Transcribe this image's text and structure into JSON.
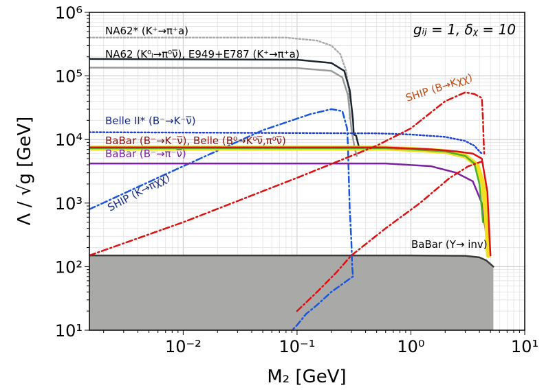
{
  "chart_data": {
    "type": "line",
    "title": "",
    "xlabel": "M₂  [GeV]",
    "ylabel": "Λ  / √g [GeV]",
    "xscale": "log",
    "yscale": "log",
    "xlim": [
      0.0015,
      10
    ],
    "ylim": [
      10,
      1000000
    ],
    "grid": true,
    "x_ticks": [
      {
        "value": 0.01,
        "label": "10⁻²"
      },
      {
        "value": 0.1,
        "label": "10⁻¹"
      },
      {
        "value": 1,
        "label": "10⁰"
      },
      {
        "value": 10,
        "label": "10¹"
      }
    ],
    "y_ticks": [
      {
        "value": 10,
        "label": "10¹"
      },
      {
        "value": 100,
        "label": "10²"
      },
      {
        "value": 1000,
        "label": "10³"
      },
      {
        "value": 10000,
        "label": "10⁴"
      },
      {
        "value": 100000,
        "label": "10⁵"
      },
      {
        "value": 1000000,
        "label": "10⁶"
      }
    ],
    "param_label": "gᵢⱼ = 1, δᵪ = 10",
    "series": [
      {
        "key": "babar_upsilon",
        "color": "#3a3a3a",
        "dash": "solid",
        "fill": "#a9aaa8",
        "points": [
          [
            0.0015,
            150
          ],
          [
            1,
            150
          ],
          [
            3,
            148
          ],
          [
            4,
            140
          ],
          [
            4.6,
            125
          ],
          [
            5.3,
            100
          ]
        ]
      },
      {
        "key": "na62_star",
        "color": "#aaaaaa",
        "dash": "dotted",
        "points": [
          [
            0.0015,
            400000
          ],
          [
            0.08,
            400000
          ],
          [
            0.15,
            360000
          ],
          [
            0.2,
            300000
          ],
          [
            0.24,
            220000
          ],
          [
            0.27,
            120000
          ],
          [
            0.285,
            60000
          ],
          [
            0.29,
            20000
          ]
        ]
      },
      {
        "key": "na62_kl",
        "color": "#1c2430",
        "dash": "solid",
        "points": [
          [
            0.0015,
            185000
          ],
          [
            0.1,
            180000
          ],
          [
            0.2,
            160000
          ],
          [
            0.26,
            120000
          ],
          [
            0.29,
            60000
          ],
          [
            0.31,
            20000
          ],
          [
            0.315,
            12000
          ],
          [
            0.33,
            11500
          ],
          [
            0.35,
            7500
          ]
        ]
      },
      {
        "key": "e949",
        "color": "#9a9a9a",
        "dash": "solid",
        "points": [
          [
            0.0015,
            135000
          ],
          [
            0.1,
            133000
          ],
          [
            0.2,
            120000
          ],
          [
            0.25,
            95000
          ],
          [
            0.28,
            50000
          ],
          [
            0.3,
            15000
          ],
          [
            0.32,
            7500
          ],
          [
            0.335,
            5500
          ]
        ]
      },
      {
        "key": "belle2_star",
        "color": "#1f3fd6",
        "dash": "dotted",
        "points": [
          [
            0.0015,
            13000
          ],
          [
            0.5,
            12500
          ],
          [
            1,
            12000
          ],
          [
            2,
            11000
          ],
          [
            3,
            9500
          ],
          [
            3.6,
            8000
          ],
          [
            4,
            6500
          ],
          [
            4.2,
            6000
          ]
        ]
      },
      {
        "key": "ship_kpichichi",
        "color": "#1a55dd",
        "dash": "dashdot",
        "points": [
          [
            0.0015,
            800
          ],
          [
            0.01,
            3800
          ],
          [
            0.05,
            14000
          ],
          [
            0.13,
            25000
          ],
          [
            0.2,
            30000
          ],
          [
            0.25,
            28000
          ],
          [
            0.275,
            15000
          ],
          [
            0.28,
            8000
          ],
          [
            0.285,
            2500
          ],
          [
            0.29,
            800
          ],
          [
            0.3,
            250
          ],
          [
            0.305,
            100
          ],
          [
            0.31,
            70
          ],
          [
            0.2,
            40
          ],
          [
            0.15,
            25
          ],
          [
            0.12,
            18
          ],
          [
            0.1,
            12
          ],
          [
            0.09,
            10
          ]
        ]
      },
      {
        "key": "babar_b_pi",
        "color": "#7a22a0",
        "dash": "solid",
        "points": [
          [
            0.0015,
            4200
          ],
          [
            0.6,
            4200
          ],
          [
            1.5,
            3800
          ],
          [
            2.5,
            3000
          ],
          [
            3.5,
            2200
          ],
          [
            4.2,
            1000
          ],
          [
            4.6,
            300
          ],
          [
            4.8,
            150
          ]
        ]
      },
      {
        "key": "yellow_band",
        "color": "#f0e020",
        "dash": "solid",
        "width": 7,
        "points": [
          [
            0.0015,
            7300
          ],
          [
            0.6,
            7300
          ],
          [
            1,
            7000
          ],
          [
            2,
            6500
          ],
          [
            3,
            5500
          ],
          [
            3.8,
            4000
          ],
          [
            4.3,
            2000
          ],
          [
            4.6,
            600
          ],
          [
            4.8,
            150
          ]
        ]
      },
      {
        "key": "green_curve",
        "color": "#4caf30",
        "dash": "solid",
        "points": [
          [
            0.0015,
            7300
          ],
          [
            0.6,
            7300
          ],
          [
            1,
            7000
          ],
          [
            2,
            6500
          ],
          [
            3,
            5500
          ],
          [
            3.6,
            4200
          ],
          [
            4,
            2000
          ],
          [
            4.2,
            800
          ],
          [
            4.3,
            500
          ]
        ]
      },
      {
        "key": "babar_bell_k",
        "color": "#dd1010",
        "dash": "solid",
        "points": [
          [
            0.0015,
            7500
          ],
          [
            0.6,
            7500
          ],
          [
            1.5,
            7000
          ],
          [
            2.5,
            6500
          ],
          [
            3.5,
            6000
          ],
          [
            4.2,
            5000
          ],
          [
            4.7,
            1500
          ],
          [
            4.9,
            300
          ],
          [
            5.0,
            150
          ]
        ]
      },
      {
        "key": "ship_bkchichi",
        "color": "#dd1010",
        "dash": "dashdot",
        "points": [
          [
            0.0015,
            150
          ],
          [
            0.01,
            500
          ],
          [
            0.1,
            2500
          ],
          [
            0.5,
            8000
          ],
          [
            1,
            15000
          ],
          [
            2,
            40000
          ],
          [
            3,
            55000
          ],
          [
            3.6,
            52000
          ],
          [
            4.2,
            45000
          ],
          [
            4.3,
            20000
          ],
          [
            4.35,
            10000
          ],
          [
            4.4,
            6000
          ]
        ]
      },
      {
        "key": "ship_b_lower",
        "color": "#dd1010",
        "dash": "dashdot",
        "points": [
          [
            0.1,
            20
          ],
          [
            0.15,
            40
          ],
          [
            0.22,
            80
          ],
          [
            0.3,
            150
          ],
          [
            0.6,
            400
          ],
          [
            1.2,
            1000
          ],
          [
            2.2,
            2500
          ],
          [
            3.2,
            3800
          ],
          [
            4.2,
            4500
          ]
        ]
      }
    ],
    "annotations": [
      {
        "key": "na62_star",
        "text": "NA62* (K⁺→π⁺a)",
        "color": "#000000"
      },
      {
        "key": "na62_kl",
        "text": "NA62 (K⁰ₗ→π⁰ν̅), E949+E787 (K⁺→π⁺a)",
        "color": "#000000"
      },
      {
        "key": "belle2_star",
        "text": "Belle II* (B⁻→K⁻ν̅)",
        "color": "#1a2a80"
      },
      {
        "key": "babar_bell_k",
        "text": "BaBar (B⁻→K⁻ν̅),   Belle (B⁰→K⁰ν̅,π⁰ν̅)",
        "color": "#8b1010"
      },
      {
        "key": "babar_b_pi",
        "text": "BaBar (B⁻→π⁻ν̅)",
        "color": "#7a22a0"
      },
      {
        "key": "ship_b",
        "text": "SHIP (B→Kχχ)",
        "color": "#c04a12"
      },
      {
        "key": "ship_k",
        "text": "SHIP (K→πχχ)",
        "color": "#1a2a80"
      },
      {
        "key": "babar_upsilon",
        "text": "BaBar (Υ→ inv)",
        "color": "#000000"
      }
    ]
  }
}
